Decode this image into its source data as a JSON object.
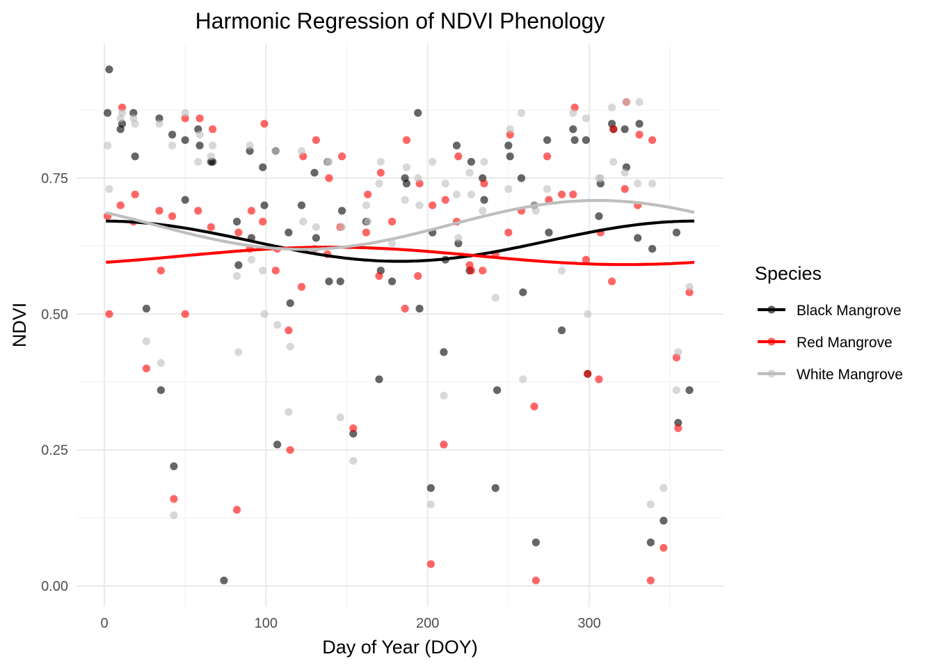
{
  "chart_data": {
    "type": "scatter",
    "title": "Harmonic Regression of NDVI Phenology",
    "xlabel": "Day of Year (DOY)",
    "ylabel": "NDVI",
    "xlim": [
      -5,
      383
    ],
    "ylim": [
      -0.04,
      0.99
    ],
    "x_ticks": [
      0,
      100,
      200,
      300
    ],
    "x_tick_labels": [
      "0",
      "100",
      "200",
      "300"
    ],
    "y_ticks": [
      0,
      0.25,
      0.5,
      0.75
    ],
    "y_tick_labels": [
      "0.00",
      "0.25",
      "0.50",
      "0.75"
    ],
    "grid": true,
    "legend": {
      "title": "Species",
      "placement": "right",
      "entries": [
        "Black Mangrove",
        "Red Mangrove",
        "White Mangrove"
      ]
    },
    "series": [
      {
        "name": "Black Mangrove",
        "color": "#000000",
        "fit": {
          "type": "harmonic",
          "mean": 0.634,
          "amplitude": 0.037,
          "peak_doy": 0
        },
        "points": [
          [
            2,
            0.87
          ],
          [
            3,
            0.95
          ],
          [
            10,
            0.84
          ],
          [
            11,
            0.85
          ],
          [
            18,
            0.87
          ],
          [
            19,
            0.79
          ],
          [
            26,
            0.51
          ],
          [
            34,
            0.86
          ],
          [
            35,
            0.36
          ],
          [
            42,
            0.83
          ],
          [
            43,
            0.22
          ],
          [
            50,
            0.71
          ],
          [
            50,
            0.82
          ],
          [
            58,
            0.84
          ],
          [
            59,
            0.81
          ],
          [
            66,
            0.78
          ],
          [
            67,
            0.78
          ],
          [
            74,
            0.01
          ],
          [
            82,
            0.67
          ],
          [
            83,
            0.59
          ],
          [
            90,
            0.8
          ],
          [
            91,
            0.64
          ],
          [
            98,
            0.77
          ],
          [
            99,
            0.7
          ],
          [
            106,
            0.8
          ],
          [
            107,
            0.26
          ],
          [
            114,
            0.65
          ],
          [
            115,
            0.52
          ],
          [
            122,
            0.7
          ],
          [
            130,
            0.76
          ],
          [
            131,
            0.64
          ],
          [
            138,
            0.78
          ],
          [
            139,
            0.56
          ],
          [
            146,
            0.56
          ],
          [
            147,
            0.69
          ],
          [
            154,
            0.28
          ],
          [
            162,
            0.67
          ],
          [
            170,
            0.38
          ],
          [
            171,
            0.58
          ],
          [
            178,
            0.56
          ],
          [
            186,
            0.75
          ],
          [
            187,
            0.74
          ],
          [
            194,
            0.87
          ],
          [
            195,
            0.51
          ],
          [
            202,
            0.18
          ],
          [
            203,
            0.65
          ],
          [
            210,
            0.43
          ],
          [
            211,
            0.6
          ],
          [
            218,
            0.81
          ],
          [
            219,
            0.63
          ],
          [
            226,
            0.58
          ],
          [
            227,
            0.78
          ],
          [
            234,
            0.75
          ],
          [
            235,
            0.71
          ],
          [
            242,
            0.18
          ],
          [
            243,
            0.36
          ],
          [
            250,
            0.81
          ],
          [
            251,
            0.79
          ],
          [
            258,
            0.75
          ],
          [
            259,
            0.54
          ],
          [
            266,
            0.7
          ],
          [
            267,
            0.08
          ],
          [
            274,
            0.82
          ],
          [
            275,
            0.65
          ],
          [
            283,
            0.47
          ],
          [
            290,
            0.84
          ],
          [
            291,
            0.82
          ],
          [
            298,
            0.82
          ],
          [
            299,
            0.39
          ],
          [
            306,
            0.68
          ],
          [
            307,
            0.74
          ],
          [
            314,
            0.85
          ],
          [
            315,
            0.84
          ],
          [
            322,
            0.84
          ],
          [
            323,
            0.77
          ],
          [
            330,
            0.64
          ],
          [
            331,
            0.85
          ],
          [
            338,
            0.08
          ],
          [
            339,
            0.62
          ],
          [
            346,
            0.12
          ],
          [
            354,
            0.65
          ],
          [
            355,
            0.3
          ],
          [
            362,
            0.36
          ]
        ]
      },
      {
        "name": "Red Mangrove",
        "color": "#ff0000",
        "fit": {
          "type": "harmonic",
          "mean": 0.607,
          "amplitude": 0.016,
          "peak_doy": 140
        },
        "points": [
          [
            2,
            0.68
          ],
          [
            3,
            0.5
          ],
          [
            10,
            0.7
          ],
          [
            11,
            0.88
          ],
          [
            18,
            0.67
          ],
          [
            19,
            0.72
          ],
          [
            26,
            0.4
          ],
          [
            34,
            0.69
          ],
          [
            35,
            0.58
          ],
          [
            42,
            0.68
          ],
          [
            43,
            0.16
          ],
          [
            50,
            0.86
          ],
          [
            50,
            0.5
          ],
          [
            58,
            0.69
          ],
          [
            59,
            0.86
          ],
          [
            66,
            0.66
          ],
          [
            67,
            0.84
          ],
          [
            82,
            0.14
          ],
          [
            83,
            0.65
          ],
          [
            90,
            0.62
          ],
          [
            91,
            0.69
          ],
          [
            98,
            0.67
          ],
          [
            99,
            0.85
          ],
          [
            106,
            0.58
          ],
          [
            107,
            0.62
          ],
          [
            114,
            0.47
          ],
          [
            115,
            0.25
          ],
          [
            122,
            0.55
          ],
          [
            123,
            0.79
          ],
          [
            130,
            0.62
          ],
          [
            131,
            0.82
          ],
          [
            138,
            0.61
          ],
          [
            139,
            0.75
          ],
          [
            146,
            0.66
          ],
          [
            147,
            0.79
          ],
          [
            154,
            0.29
          ],
          [
            162,
            0.65
          ],
          [
            163,
            0.72
          ],
          [
            170,
            0.57
          ],
          [
            171,
            0.76
          ],
          [
            178,
            0.67
          ],
          [
            186,
            0.51
          ],
          [
            187,
            0.82
          ],
          [
            194,
            0.57
          ],
          [
            195,
            0.74
          ],
          [
            202,
            0.04
          ],
          [
            203,
            0.7
          ],
          [
            210,
            0.26
          ],
          [
            211,
            0.71
          ],
          [
            218,
            0.67
          ],
          [
            219,
            0.79
          ],
          [
            226,
            0.59
          ],
          [
            227,
            0.58
          ],
          [
            234,
            0.58
          ],
          [
            235,
            0.74
          ],
          [
            242,
            0.61
          ],
          [
            250,
            0.65
          ],
          [
            251,
            0.83
          ],
          [
            258,
            0.69
          ],
          [
            266,
            0.33
          ],
          [
            267,
            0.01
          ],
          [
            274,
            0.79
          ],
          [
            275,
            0.71
          ],
          [
            283,
            0.72
          ],
          [
            290,
            0.72
          ],
          [
            291,
            0.88
          ],
          [
            298,
            0.6
          ],
          [
            299,
            0.39
          ],
          [
            306,
            0.38
          ],
          [
            307,
            0.65
          ],
          [
            314,
            0.56
          ],
          [
            315,
            0.84
          ],
          [
            322,
            0.73
          ],
          [
            323,
            0.89
          ],
          [
            330,
            0.7
          ],
          [
            331,
            0.83
          ],
          [
            338,
            0.01
          ],
          [
            339,
            0.82
          ],
          [
            346,
            0.07
          ],
          [
            354,
            0.42
          ],
          [
            355,
            0.29
          ],
          [
            362,
            0.54
          ]
        ]
      },
      {
        "name": "White Mangrove",
        "color": "#bebebe",
        "fit": {
          "type": "harmonic",
          "mean": 0.664,
          "amplitude": 0.045,
          "peak_doy": 305
        },
        "points": [
          [
            2,
            0.81
          ],
          [
            3,
            0.73
          ],
          [
            10,
            0.86
          ],
          [
            11,
            0.87
          ],
          [
            18,
            0.86
          ],
          [
            19,
            0.85
          ],
          [
            26,
            0.45
          ],
          [
            34,
            0.85
          ],
          [
            35,
            0.41
          ],
          [
            42,
            0.81
          ],
          [
            43,
            0.13
          ],
          [
            50,
            0.87
          ],
          [
            58,
            0.78
          ],
          [
            59,
            0.83
          ],
          [
            66,
            0.79
          ],
          [
            67,
            0.81
          ],
          [
            82,
            0.57
          ],
          [
            83,
            0.43
          ],
          [
            90,
            0.81
          ],
          [
            91,
            0.6
          ],
          [
            98,
            0.58
          ],
          [
            99,
            0.5
          ],
          [
            106,
            0.8
          ],
          [
            107,
            0.48
          ],
          [
            114,
            0.32
          ],
          [
            115,
            0.44
          ],
          [
            122,
            0.8
          ],
          [
            123,
            0.67
          ],
          [
            130,
            0.62
          ],
          [
            131,
            0.66
          ],
          [
            138,
            0.78
          ],
          [
            139,
            0.78
          ],
          [
            146,
            0.31
          ],
          [
            147,
            0.66
          ],
          [
            154,
            0.23
          ],
          [
            162,
            0.7
          ],
          [
            163,
            0.67
          ],
          [
            170,
            0.74
          ],
          [
            171,
            0.78
          ],
          [
            178,
            0.63
          ],
          [
            186,
            0.71
          ],
          [
            187,
            0.77
          ],
          [
            194,
            0.75
          ],
          [
            195,
            0.7
          ],
          [
            202,
            0.15
          ],
          [
            203,
            0.78
          ],
          [
            210,
            0.35
          ],
          [
            211,
            0.74
          ],
          [
            218,
            0.72
          ],
          [
            219,
            0.64
          ],
          [
            226,
            0.76
          ],
          [
            227,
            0.72
          ],
          [
            234,
            0.69
          ],
          [
            235,
            0.78
          ],
          [
            242,
            0.53
          ],
          [
            250,
            0.73
          ],
          [
            251,
            0.84
          ],
          [
            258,
            0.87
          ],
          [
            259,
            0.38
          ],
          [
            266,
            0.7
          ],
          [
            267,
            0.69
          ],
          [
            274,
            0.73
          ],
          [
            283,
            0.58
          ],
          [
            290,
            0.87
          ],
          [
            298,
            0.86
          ],
          [
            299,
            0.5
          ],
          [
            306,
            0.75
          ],
          [
            307,
            0.75
          ],
          [
            314,
            0.88
          ],
          [
            315,
            0.78
          ],
          [
            322,
            0.76
          ],
          [
            323,
            0.89
          ],
          [
            330,
            0.74
          ],
          [
            331,
            0.89
          ],
          [
            338,
            0.15
          ],
          [
            339,
            0.74
          ],
          [
            346,
            0.18
          ],
          [
            354,
            0.36
          ],
          [
            355,
            0.43
          ],
          [
            362,
            0.55
          ]
        ]
      }
    ]
  }
}
